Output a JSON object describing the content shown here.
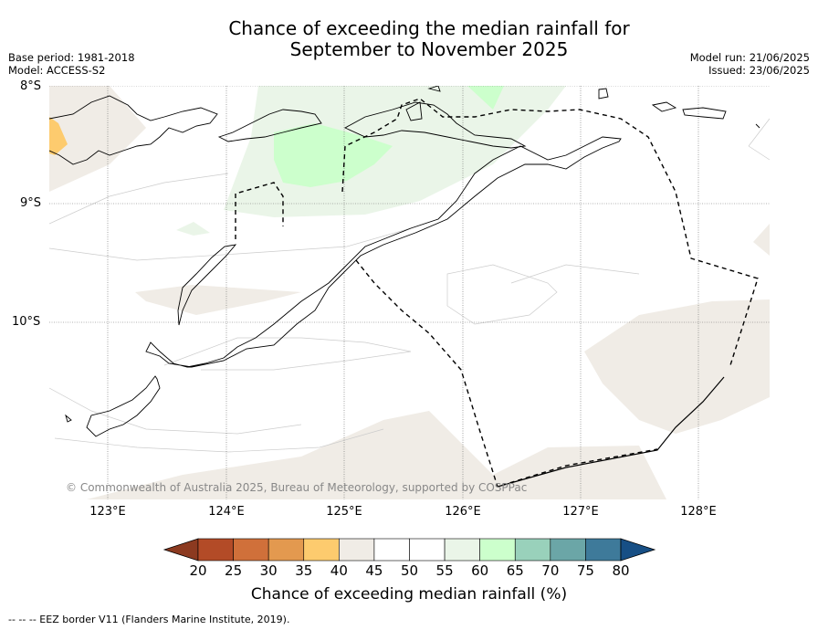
{
  "title_line1": "Chance of exceeding the median rainfall for",
  "title_line2": "September to November 2025",
  "base_period": "Base period: 1981-2018",
  "model": "Model: ACCESS-S2",
  "model_run": "Model run: 21/06/2025",
  "issued": "Issued: 23/06/2025",
  "lat_labels": [
    "8°S",
    "9°S",
    "10°S"
  ],
  "lon_labels": [
    "123°E",
    "124°E",
    "125°E",
    "126°E",
    "127°E",
    "128°E"
  ],
  "copyright": "© Commonwealth of Australia 2025, Bureau of Meteorology, supported by COSPPac",
  "colorbar": {
    "ticks": [
      "20",
      "25",
      "30",
      "35",
      "40",
      "45",
      "50",
      "55",
      "60",
      "65",
      "70",
      "75",
      "80"
    ],
    "colors": [
      "#b34b27",
      "#d0703a",
      "#e3994f",
      "#fdcb6e",
      "#f0ece6",
      "#ffffff",
      "#ffffff",
      "#eaf5e8",
      "#ccffcc",
      "#99d1bb",
      "#6ba6a7",
      "#3e7a9a"
    ],
    "under_color": "#8c3a20",
    "over_color": "#174f85",
    "label": "Chance of exceeding median rainfall (%)"
  },
  "footer": "--  --  -- EEZ border V11 (Flanders Marine Institute, 2019)."
}
